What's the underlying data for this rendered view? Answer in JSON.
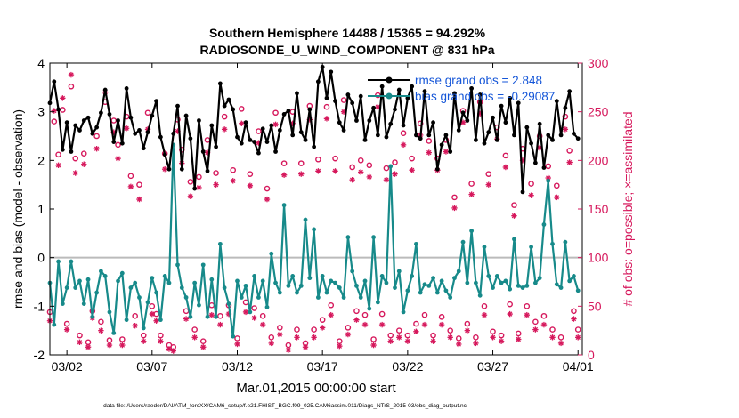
{
  "chart_data": {
    "type": "line",
    "title": [
      "Southern Hemisphere 14488 / 15365 = 94.292%",
      "RADIOSONDE_U_WIND_COMPONENT @ 831 hPa"
    ],
    "xlabel": "Mar.01,2015 00:00:00 start",
    "ylabel_left": "rmse and bias (model - observation)",
    "ylabel_right": "# of obs: o=possible; ×=assimilated",
    "footer": "data file: /Users/raeder/DAI/ATM_forcXX/CAM6_setup/f.e21.FHIST_BGC.f09_025.CAM6assim.011/Diags_NTrS_2015-03/obs_diag_output.nc",
    "x_ticks": [
      "03/02",
      "03/07",
      "03/12",
      "03/17",
      "03/22",
      "03/27",
      "04/01"
    ],
    "x_tick_days": [
      1,
      6,
      11,
      16,
      21,
      26,
      31
    ],
    "xlim": [
      0.0,
      31.25
    ],
    "ylim_left": [
      -2,
      4
    ],
    "yticks_left": [
      -2,
      -1,
      0,
      1,
      2,
      3,
      4
    ],
    "ylim_right": [
      0,
      300
    ],
    "yticks_right": [
      0,
      50,
      100,
      150,
      200,
      250,
      300
    ],
    "legend": [
      "rmse grand obs = 2.848",
      "bias grand obs = -0.29087"
    ],
    "colors": {
      "rmse": "#000000",
      "bias": "#178a8a",
      "obs": "#d6185c",
      "zero_line": "#bbbbbb"
    },
    "x": [
      0.0,
      0.25,
      0.5,
      0.75,
      1.0,
      1.25,
      1.5,
      1.75,
      2.0,
      2.25,
      2.5,
      2.75,
      3.0,
      3.25,
      3.5,
      3.75,
      4.0,
      4.25,
      4.5,
      4.75,
      5.0,
      5.25,
      5.5,
      5.75,
      6.0,
      6.25,
      6.5,
      6.75,
      7.0,
      7.25,
      7.5,
      7.75,
      8.0,
      8.25,
      8.5,
      8.75,
      9.0,
      9.25,
      9.5,
      9.75,
      10.0,
      10.25,
      10.5,
      10.75,
      11.0,
      11.25,
      11.5,
      11.75,
      12.0,
      12.25,
      12.5,
      12.75,
      13.0,
      13.25,
      13.5,
      13.75,
      14.0,
      14.25,
      14.5,
      14.75,
      15.0,
      15.25,
      15.5,
      15.75,
      16.0,
      16.25,
      16.5,
      16.75,
      17.0,
      17.25,
      17.5,
      17.75,
      18.0,
      18.25,
      18.5,
      18.75,
      19.0,
      19.25,
      19.5,
      19.75,
      20.0,
      20.25,
      20.5,
      20.75,
      21.0,
      21.25,
      21.5,
      21.75,
      22.0,
      22.25,
      22.5,
      22.75,
      23.0,
      23.25,
      23.5,
      23.75,
      24.0,
      24.25,
      24.5,
      24.75,
      25.0,
      25.25,
      25.5,
      25.75,
      26.0,
      26.25,
      26.5,
      26.75,
      27.0,
      27.25,
      27.5,
      27.75,
      28.0,
      28.25,
      28.5,
      28.75,
      29.0,
      29.25,
      29.5,
      29.75,
      30.0,
      30.25,
      30.5,
      30.75,
      31.0
    ],
    "series": [
      {
        "name": "rmse",
        "values": [
          3.18,
          3.62,
          3.05,
          2.22,
          2.78,
          2.18,
          2.72,
          2.62,
          2.82,
          2.88,
          2.55,
          2.68,
          2.98,
          3.45,
          2.95,
          2.38,
          2.82,
          2.35,
          3.48,
          2.88,
          2.55,
          2.62,
          2.25,
          2.58,
          2.92,
          3.22,
          2.48,
          2.12,
          1.82,
          2.55,
          3.12,
          1.82,
          2.92,
          2.45,
          1.42,
          2.82,
          2.18,
          1.78,
          2.72,
          2.28,
          3.58,
          3.12,
          3.25,
          3.05,
          2.48,
          2.35,
          2.78,
          2.42,
          2.38,
          2.15,
          2.65,
          2.38,
          2.72,
          2.18,
          2.62,
          2.95,
          3.02,
          2.52,
          3.38,
          2.58,
          2.42,
          3.05,
          2.28,
          3.62,
          3.92,
          3.28,
          3.82,
          3.22,
          2.78,
          2.62,
          3.35,
          3.18,
          2.82,
          3.32,
          2.42,
          2.82,
          3.08,
          2.52,
          3.52,
          2.48,
          2.75,
          3.05,
          3.45,
          2.72,
          3.28,
          3.52,
          2.52,
          2.45,
          3.42,
          2.52,
          2.78,
          1.82,
          2.32,
          2.52,
          2.18,
          3.38,
          2.62,
          2.98,
          2.82,
          3.48,
          2.42,
          3.35,
          2.35,
          2.58,
          2.88,
          2.42,
          3.12,
          2.78,
          3.28,
          2.52,
          3.18,
          1.35,
          2.68,
          2.35,
          1.95,
          2.75,
          1.85,
          2.52,
          2.42,
          3.22,
          2.52,
          3.08,
          3.42,
          2.55,
          2.45
        ]
      },
      {
        "name": "bias",
        "values": [
          -0.52,
          -1.38,
          -0.08,
          -0.95,
          -0.62,
          -0.08,
          -0.62,
          -0.48,
          -0.95,
          -0.45,
          -1.22,
          -0.72,
          -0.28,
          -0.38,
          -1.12,
          -1.55,
          -0.48,
          -0.32,
          -1.28,
          -0.62,
          -0.52,
          -0.82,
          -1.45,
          -0.92,
          -0.42,
          -0.72,
          -1.28,
          -0.38,
          -0.52,
          2.32,
          -0.15,
          -0.62,
          -0.82,
          -1.22,
          -0.52,
          -0.98,
          -0.15,
          -1.22,
          -0.45,
          -1.22,
          0.28,
          -0.62,
          -0.95,
          -1.62,
          -0.48,
          -0.82,
          -0.58,
          -1.12,
          -0.38,
          -0.82,
          -0.48,
          -1.02,
          0.08,
          -0.52,
          -0.72,
          1.08,
          -0.58,
          -0.38,
          -0.72,
          -0.58,
          0.78,
          -0.42,
          0.58,
          -0.82,
          -0.38,
          -0.72,
          -0.48,
          -0.52,
          -0.62,
          -0.82,
          0.42,
          -0.28,
          -0.58,
          -0.82,
          -0.48,
          -1.05,
          0.42,
          -0.92,
          -0.38,
          -0.52,
          1.88,
          -0.62,
          -0.28,
          -1.12,
          -0.68,
          -0.38,
          0.28,
          -0.72,
          -0.55,
          -0.58,
          -0.42,
          -0.72,
          -0.48,
          -0.68,
          -0.82,
          -0.42,
          -0.28,
          0.32,
          -0.52,
          0.55,
          -0.52,
          -0.78,
          0.22,
          -0.38,
          -0.62,
          -0.38,
          -0.52,
          -0.48,
          -0.65,
          0.38,
          -0.58,
          -0.62,
          -0.58,
          0.22,
          -0.52,
          -0.42,
          0.68,
          1.58,
          0.28,
          -0.55,
          -0.62,
          0.32,
          -0.48,
          -0.38,
          -0.68
        ]
      },
      {
        "name": "obs_possible",
        "values": [
          44,
          240,
          206,
          252,
          32,
          276,
          202,
          20,
          207,
          13,
          45,
          225,
          34,
          260,
          15,
          241,
          216,
          16,
          245,
          184,
          40,
          175,
          20,
          249,
          50,
          42,
          20,
          207,
          10,
          8,
          242,
          211,
          45,
          178,
          26,
          183,
          14,
          221,
          51,
          187,
          40,
          245,
          51,
          190,
          17,
          253,
          54,
          186,
          48,
          230,
          40,
          171,
          18,
          249,
          28,
          197,
          10,
          250,
          26,
          197,
          12,
          256,
          26,
          201,
          36,
          255,
          51,
          202,
          14,
          262,
          28,
          193,
          45,
          200,
          41,
          195,
          16,
          267,
          42,
          192,
          20,
          198,
          25,
          228,
          20,
          202,
          32,
          238,
          41,
          220,
          20,
          202,
          39,
          221,
          25,
          162,
          17,
          251,
          32,
          176,
          18,
          260,
          50,
          186,
          24,
          234,
          20,
          205,
          52,
          154,
          22,
          212,
          50,
          176,
          34,
          225,
          40,
          194,
          26,
          174,
          18,
          245,
          210,
          45,
          26
        ]
      },
      {
        "name": "obs_assimilated",
        "values": [
          35,
          251,
          195,
          264,
          26,
          288,
          187,
          13,
          196,
          8,
          38,
          212,
          25,
          270,
          10,
          229,
          202,
          10,
          233,
          173,
          30,
          160,
          14,
          232,
          42,
          35,
          14,
          191,
          6,
          4,
          230,
          197,
          37,
          163,
          18,
          172,
          8,
          208,
          41,
          175,
          31,
          232,
          42,
          179,
          11,
          238,
          44,
          174,
          38,
          218,
          31,
          160,
          12,
          237,
          21,
          185,
          5,
          238,
          18,
          186,
          8,
          242,
          18,
          189,
          28,
          243,
          41,
          189,
          9,
          250,
          21,
          180,
          36,
          188,
          31,
          183,
          10,
          255,
          31,
          180,
          14,
          186,
          18,
          216,
          14,
          190,
          24,
          226,
          31,
          208,
          14,
          190,
          31,
          209,
          18,
          151,
          11,
          239,
          25,
          165,
          12,
          248,
          41,
          175,
          18,
          222,
          14,
          193,
          42,
          143,
          16,
          200,
          41,
          164,
          26,
          213,
          31,
          182,
          18,
          162,
          12,
          232,
          198,
          37,
          18
        ]
      }
    ]
  }
}
